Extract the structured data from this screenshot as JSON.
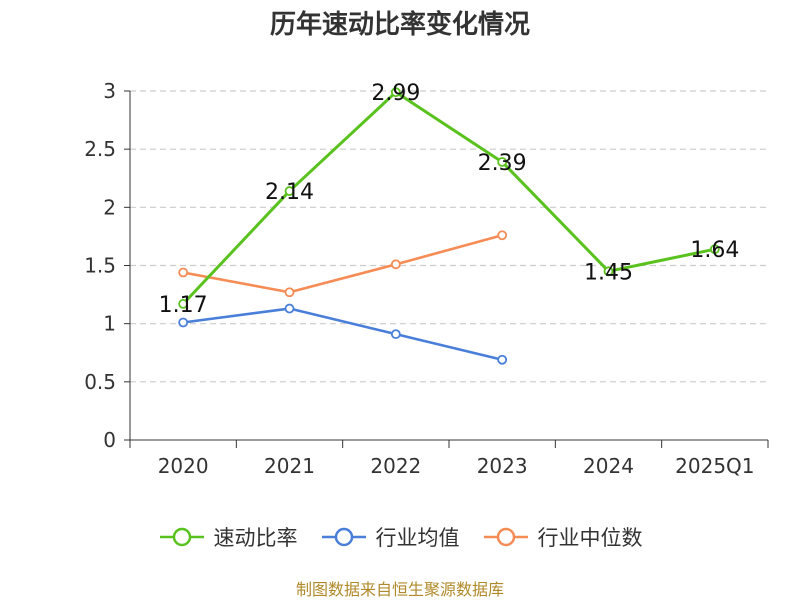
{
  "chart_data": {
    "type": "line",
    "title": "历年速动比率变化情况",
    "categories": [
      "2020",
      "2021",
      "2022",
      "2023",
      "2024",
      "2025Q1"
    ],
    "yticks": [
      "0",
      "0.5",
      "1",
      "1.5",
      "2",
      "2.5",
      "3"
    ],
    "ylim": [
      0,
      3
    ],
    "grid": true,
    "legend_position": "bottom",
    "series": [
      {
        "name": "速动比率",
        "color": "#5ac21e",
        "values": [
          1.17,
          2.14,
          2.99,
          2.39,
          1.45,
          1.64
        ],
        "labels": [
          "1.17",
          "2.14",
          "2.99",
          "2.39",
          "1.45",
          "1.64"
        ]
      },
      {
        "name": "行业均值",
        "color": "#4a7fd9",
        "values": [
          1.01,
          1.13,
          0.91,
          0.69,
          null,
          null
        ]
      },
      {
        "name": "行业中位数",
        "color": "#f58c55",
        "values": [
          1.44,
          1.27,
          1.51,
          1.76,
          null,
          null
        ]
      }
    ]
  },
  "footer": {
    "source": "制图数据来自恒生聚源数据库"
  }
}
